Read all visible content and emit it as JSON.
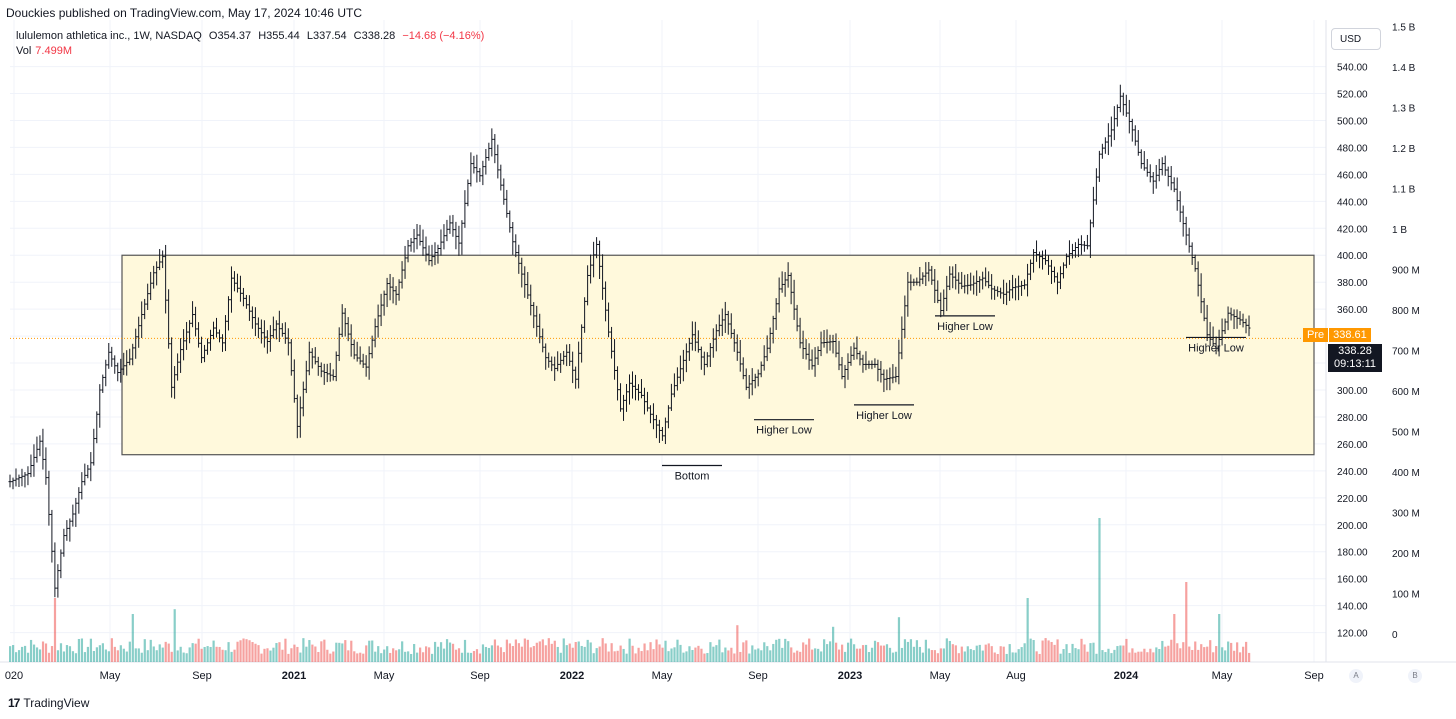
{
  "header": {
    "published": "Douckies published on TradingView.com, May 17, 2024 10:46 UTC",
    "symbol": "lululemon athletica inc., 1W, NASDAQ",
    "open": "O354.37",
    "high": "H355.44",
    "low": "L337.54",
    "close": "C338.28",
    "change": "−14.68 (−4.16%)",
    "vol_label": "Vol",
    "vol_value": "7.499M"
  },
  "currency": "USD",
  "footer": {
    "brand": "TradingView",
    "logo": "17"
  },
  "price_tags": {
    "pre_label": "Pre",
    "pre_value": "338.61",
    "last": "338.28",
    "countdown": "09:13:11"
  },
  "scale_buttons": {
    "auto": "A",
    "log": "B"
  },
  "colors": {
    "up": "#26a69a",
    "down": "#ef5350",
    "zone_fill": "#fff9dc",
    "zone_stroke": "#555555",
    "price_line": "#ff9800",
    "bars": "#131722"
  },
  "chart_data": {
    "type": "ohlc",
    "price_axis": {
      "ticks": [
        120,
        140,
        160,
        180,
        200,
        220,
        240,
        260,
        280,
        300,
        320,
        340,
        360,
        380,
        400,
        420,
        440,
        460,
        480,
        500,
        520,
        540
      ],
      "range": [
        113,
        560
      ]
    },
    "volume_axis": {
      "ticks": [
        "0",
        "100 M",
        "200 M",
        "300 M",
        "400 M",
        "500 M",
        "600 M",
        "700 M",
        "800 M",
        "900 M",
        "1 B",
        "1.1 B",
        "1.2 B",
        "1.3 B",
        "1.4 B",
        "1.5 B"
      ]
    },
    "x_labels": [
      "020",
      "May",
      "Sep",
      "2021",
      "May",
      "Sep",
      "2022",
      "May",
      "Sep",
      "2023",
      "May",
      "Aug",
      "2024",
      "May",
      "Sep"
    ],
    "zone": {
      "top": 400,
      "bottom": 252
    },
    "annotations": [
      {
        "text": "Bottom",
        "price": 244
      },
      {
        "text": "Higher Low",
        "price": 278
      },
      {
        "text": "Higher Low",
        "price": 289
      },
      {
        "text": "Higher Low",
        "price": 355
      },
      {
        "text": "Higher Low",
        "price": 339
      }
    ],
    "price_anchors": [
      [
        0,
        232
      ],
      [
        6,
        238
      ],
      [
        10,
        262
      ],
      [
        12,
        235
      ],
      [
        15,
        153
      ],
      [
        18,
        192
      ],
      [
        21,
        208
      ],
      [
        24,
        232
      ],
      [
        27,
        246
      ],
      [
        30,
        300
      ],
      [
        33,
        328
      ],
      [
        36,
        313
      ],
      [
        40,
        323
      ],
      [
        44,
        356
      ],
      [
        48,
        387
      ],
      [
        51,
        399
      ],
      [
        54,
        302
      ],
      [
        57,
        330
      ],
      [
        61,
        356
      ],
      [
        64,
        324
      ],
      [
        68,
        346
      ],
      [
        71,
        335
      ],
      [
        74,
        383
      ],
      [
        78,
        368
      ],
      [
        82,
        349
      ],
      [
        86,
        336
      ],
      [
        89,
        349
      ],
      [
        93,
        335
      ],
      [
        96,
        273
      ],
      [
        100,
        328
      ],
      [
        104,
        314
      ],
      [
        108,
        310
      ],
      [
        111,
        357
      ],
      [
        115,
        326
      ],
      [
        119,
        317
      ],
      [
        122,
        347
      ],
      [
        126,
        379
      ],
      [
        129,
        371
      ],
      [
        133,
        407
      ],
      [
        136,
        415
      ],
      [
        140,
        396
      ],
      [
        143,
        405
      ],
      [
        147,
        424
      ],
      [
        150,
        409
      ],
      [
        154,
        468
      ],
      [
        157,
        459
      ],
      [
        161,
        486
      ],
      [
        164,
        452
      ],
      [
        168,
        410
      ],
      [
        171,
        386
      ],
      [
        175,
        355
      ],
      [
        179,
        324
      ],
      [
        182,
        316
      ],
      [
        186,
        328
      ],
      [
        189,
        308
      ],
      [
        193,
        385
      ],
      [
        196,
        408
      ],
      [
        200,
        343
      ],
      [
        204,
        286
      ],
      [
        207,
        305
      ],
      [
        211,
        296
      ],
      [
        214,
        282
      ],
      [
        218,
        266
      ],
      [
        221,
        297
      ],
      [
        225,
        322
      ],
      [
        228,
        341
      ],
      [
        232,
        319
      ],
      [
        236,
        344
      ],
      [
        239,
        356
      ],
      [
        243,
        328
      ],
      [
        246,
        302
      ],
      [
        250,
        312
      ],
      [
        253,
        331
      ],
      [
        257,
        375
      ],
      [
        260,
        385
      ],
      [
        264,
        335
      ],
      [
        268,
        318
      ],
      [
        271,
        335
      ],
      [
        275,
        336
      ],
      [
        278,
        310
      ],
      [
        282,
        331
      ],
      [
        285,
        319
      ],
      [
        289,
        319
      ],
      [
        292,
        308
      ],
      [
        296,
        310
      ],
      [
        300,
        380
      ],
      [
        303,
        380
      ],
      [
        307,
        389
      ],
      [
        311,
        359
      ],
      [
        314,
        386
      ],
      [
        318,
        377
      ],
      [
        321,
        378
      ],
      [
        325,
        383
      ],
      [
        328,
        375
      ],
      [
        332,
        371
      ],
      [
        335,
        376
      ],
      [
        339,
        378
      ],
      [
        342,
        402
      ],
      [
        346,
        396
      ],
      [
        350,
        380
      ],
      [
        353,
        399
      ],
      [
        357,
        408
      ],
      [
        360,
        407
      ],
      [
        364,
        475
      ],
      [
        368,
        493
      ],
      [
        371,
        518
      ],
      [
        375,
        493
      ],
      [
        378,
        468
      ],
      [
        382,
        455
      ],
      [
        385,
        468
      ],
      [
        389,
        449
      ],
      [
        393,
        415
      ],
      [
        396,
        390
      ],
      [
        400,
        341
      ],
      [
        403,
        331
      ],
      [
        407,
        357
      ],
      [
        411,
        352
      ],
      [
        414,
        346
      ]
    ],
    "pre_value": 338.61,
    "last_value": 338.28
  }
}
